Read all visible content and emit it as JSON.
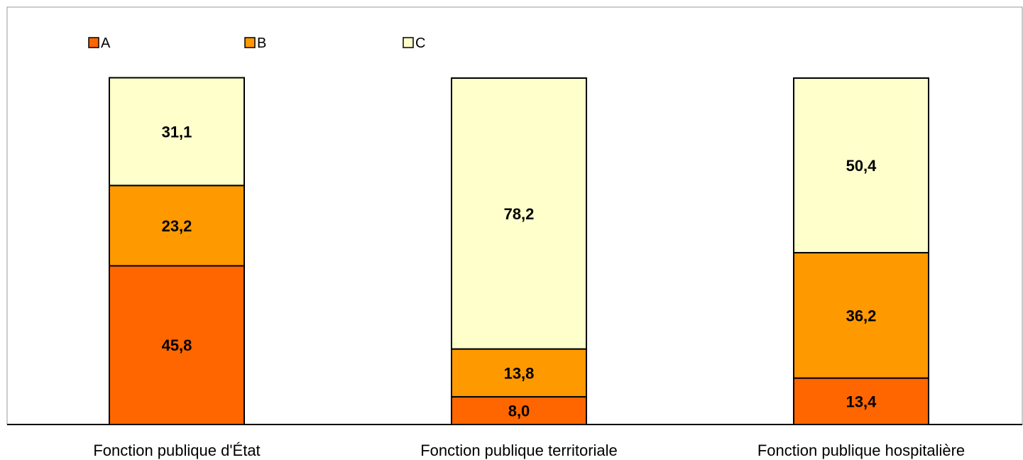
{
  "chart_data": {
    "type": "bar",
    "stacked": true,
    "categories": [
      "Fonction publique d'État",
      "Fonction publique territoriale",
      "Fonction publique hospitalière"
    ],
    "series": [
      {
        "name": "A",
        "values": [
          45.8,
          8.0,
          13.4
        ],
        "labels": [
          "45,8",
          "8,0",
          "13,4"
        ],
        "color": "#FF6600"
      },
      {
        "name": "B",
        "values": [
          23.2,
          13.8,
          36.2
        ],
        "labels": [
          "23,2",
          "13,8",
          "36,2"
        ],
        "color": "#FF9900"
      },
      {
        "name": "C",
        "values": [
          31.1,
          78.2,
          50.4
        ],
        "labels": [
          "31,1",
          "78,2",
          "50,4"
        ],
        "color": "#FFFFCC"
      }
    ],
    "ylim": [
      0,
      100
    ],
    "grid": false,
    "legend_position": "top-left",
    "title": "",
    "xlabel": "",
    "ylabel": ""
  }
}
